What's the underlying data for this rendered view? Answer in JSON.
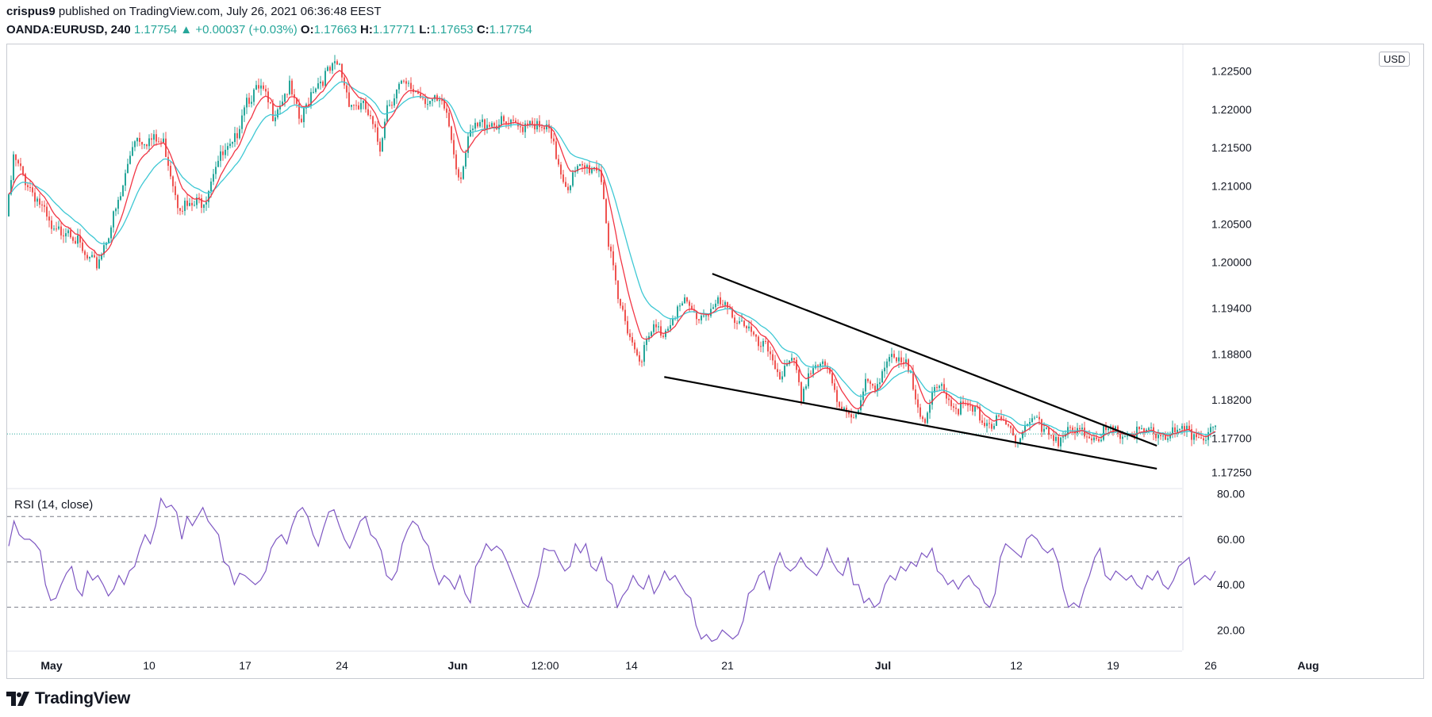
{
  "header": {
    "author": "crispus9",
    "published_text": " published on TradingView.com, July 26, 2021 06:36:48 EEST",
    "symbol": "OANDA:EURUSD, 240",
    "last": "1.17754",
    "change_arrow": "▲",
    "change": "+0.00037 (+0.03%)",
    "o_label": "O:",
    "o": "1.17663",
    "h_label": "H:",
    "h": "1.17771",
    "l_label": "L:",
    "l": "1.17653",
    "c_label": "C:",
    "c": "1.17754"
  },
  "branding": {
    "logo_text": "TradingView"
  },
  "colors": {
    "up": "#26a69a",
    "down": "#ef5350",
    "ema_fast": "#f23645",
    "ema_slow": "#3ec8d4",
    "rsi": "#7e57c2",
    "trendline": "#000000"
  },
  "chart_data": [
    {
      "type": "candlestick",
      "title": "OANDA:EURUSD, 240",
      "currency": "USD",
      "last_price": 1.17754,
      "ylim": [
        1.1705,
        1.2285
      ],
      "y_ticks": [
        "1.22500",
        "1.22000",
        "1.21500",
        "1.21000",
        "1.20500",
        "1.20000",
        "1.19400",
        "1.18800",
        "1.18200",
        "1.17700",
        "1.17250"
      ],
      "x_ticks": [
        "May",
        "10",
        "17",
        "24",
        "Jun",
        "12:00",
        "14",
        "21",
        "Jul",
        "12",
        "19",
        "26",
        "Aug"
      ],
      "price_path": [
        [
          0,
          1.206
        ],
        [
          8,
          1.2135
        ],
        [
          22,
          1.211
        ],
        [
          40,
          1.208
        ],
        [
          58,
          1.2035
        ],
        [
          78,
          1.2048
        ],
        [
          98,
          1.2005
        ],
        [
          112,
          1.1995
        ],
        [
          128,
          1.204
        ],
        [
          143,
          1.2085
        ],
        [
          160,
          1.2165
        ],
        [
          180,
          1.216
        ],
        [
          198,
          1.2155
        ],
        [
          215,
          1.208
        ],
        [
          230,
          1.207
        ],
        [
          250,
          1.2085
        ],
        [
          262,
          1.213
        ],
        [
          285,
          1.215
        ],
        [
          300,
          1.2215
        ],
        [
          320,
          1.2225
        ],
        [
          335,
          1.2195
        ],
        [
          355,
          1.223
        ],
        [
          370,
          1.218
        ],
        [
          385,
          1.223
        ],
        [
          402,
          1.2245
        ],
        [
          418,
          1.2258
        ],
        [
          432,
          1.221
        ],
        [
          452,
          1.22
        ],
        [
          470,
          1.215
        ],
        [
          478,
          1.2205
        ],
        [
          495,
          1.223
        ],
        [
          515,
          1.2225
        ],
        [
          535,
          1.221
        ],
        [
          553,
          1.22
        ],
        [
          570,
          1.211
        ],
        [
          585,
          1.217
        ],
        [
          605,
          1.2185
        ],
        [
          625,
          1.218
        ],
        [
          645,
          1.2175
        ],
        [
          660,
          1.219
        ],
        [
          672,
          1.217
        ],
        [
          680,
          1.2175
        ],
        [
          692,
          1.214
        ],
        [
          705,
          1.21
        ],
        [
          720,
          1.212
        ],
        [
          738,
          1.2125
        ],
        [
          746,
          1.2125
        ],
        [
          752,
          1.209
        ],
        [
          758,
          1.202
        ],
        [
          762,
          1.1998
        ],
        [
          770,
          1.1948
        ],
        [
          780,
          1.1925
        ],
        [
          790,
          1.1888
        ],
        [
          800,
          1.1878
        ],
        [
          815,
          1.1913
        ],
        [
          828,
          1.1908
        ],
        [
          840,
          1.1935
        ],
        [
          855,
          1.1945
        ],
        [
          870,
          1.1928
        ],
        [
          885,
          1.1938
        ],
        [
          897,
          1.1945
        ],
        [
          912,
          1.1932
        ],
        [
          930,
          1.1922
        ],
        [
          945,
          1.189
        ],
        [
          960,
          1.1885
        ],
        [
          975,
          1.1852
        ],
        [
          992,
          1.1868
        ],
        [
          1000,
          1.1822
        ],
        [
          1010,
          1.1855
        ],
        [
          1020,
          1.1868
        ],
        [
          1035,
          1.1855
        ],
        [
          1048,
          1.1815
        ],
        [
          1060,
          1.181
        ],
        [
          1070,
          1.1793
        ],
        [
          1082,
          1.1838
        ],
        [
          1095,
          1.1842
        ],
        [
          1110,
          1.1873
        ],
        [
          1125,
          1.1865
        ],
        [
          1138,
          1.1862
        ],
        [
          1148,
          1.1818
        ],
        [
          1158,
          1.1783
        ],
        [
          1168,
          1.183
        ],
        [
          1180,
          1.184
        ],
        [
          1192,
          1.1812
        ],
        [
          1210,
          1.1808
        ],
        [
          1225,
          1.18
        ],
        [
          1238,
          1.179
        ],
        [
          1250,
          1.179
        ],
        [
          1262,
          1.1782
        ],
        [
          1275,
          1.177
        ],
        [
          1285,
          1.179
        ],
        [
          1293,
          1.1796
        ],
        [
          1298,
          1.1795
        ],
        [
          1305,
          1.1775
        ],
        [
          1315,
          1.1778
        ],
        [
          1325,
          1.177
        ],
        [
          1332,
          1.17754
        ]
      ],
      "wedge_upper": [
        [
          25,
          1.1985
        ],
        [
          31,
          1.176
        ]
      ],
      "wedge_lower": [
        [
          21,
          1.185
        ],
        [
          31,
          1.173
        ]
      ]
    },
    {
      "type": "line",
      "title": "RSI (14, close)",
      "ylim": [
        11,
        82
      ],
      "y_ticks": [
        "80.00",
        "60.00",
        "40.00",
        "20.00"
      ],
      "levels": [
        70,
        50,
        30
      ],
      "values": [
        57,
        68,
        62,
        60,
        60,
        58,
        55,
        40,
        33,
        34,
        40,
        45,
        48,
        38,
        35,
        46,
        42,
        44,
        40,
        35,
        38,
        44,
        40,
        46,
        48,
        56,
        62,
        58,
        66,
        78,
        74,
        75,
        72,
        60,
        70,
        66,
        70,
        74,
        68,
        65,
        62,
        50,
        48,
        40,
        45,
        44,
        42,
        40,
        42,
        46,
        56,
        60,
        62,
        58,
        66,
        72,
        74,
        70,
        62,
        57,
        65,
        72,
        73,
        66,
        60,
        56,
        62,
        68,
        70,
        62,
        60,
        55,
        44,
        42,
        46,
        58,
        64,
        68,
        66,
        60,
        57,
        47,
        40,
        44,
        42,
        38,
        44,
        36,
        32,
        48,
        52,
        58,
        55,
        57,
        55,
        50,
        44,
        38,
        32,
        30,
        36,
        44,
        56,
        55,
        55,
        50,
        46,
        48,
        58,
        54,
        58,
        48,
        46,
        52,
        42,
        40,
        30,
        35,
        38,
        44,
        40,
        38,
        44,
        36,
        40,
        46,
        42,
        44,
        40,
        36,
        34,
        22,
        16,
        18,
        15,
        16,
        20,
        18,
        16,
        18,
        24,
        36,
        38,
        44,
        46,
        38,
        48,
        54,
        48,
        46,
        48,
        52,
        48,
        46,
        44,
        48,
        56,
        50,
        46,
        44,
        52,
        40,
        40,
        32,
        34,
        30,
        32,
        40,
        44,
        42,
        48,
        46,
        50,
        48,
        54,
        52,
        56,
        46,
        44,
        40,
        42,
        38,
        42,
        44,
        40,
        38,
        32,
        30,
        36,
        52,
        58,
        56,
        54,
        52,
        60,
        62,
        60,
        56,
        54,
        56,
        50,
        38,
        30,
        32,
        30,
        38,
        44,
        52,
        56,
        44,
        42,
        46,
        44,
        42,
        44,
        40,
        38,
        44,
        42,
        46,
        40,
        38,
        42,
        48,
        50,
        52,
        40,
        42,
        44,
        42,
        46
      ]
    }
  ]
}
